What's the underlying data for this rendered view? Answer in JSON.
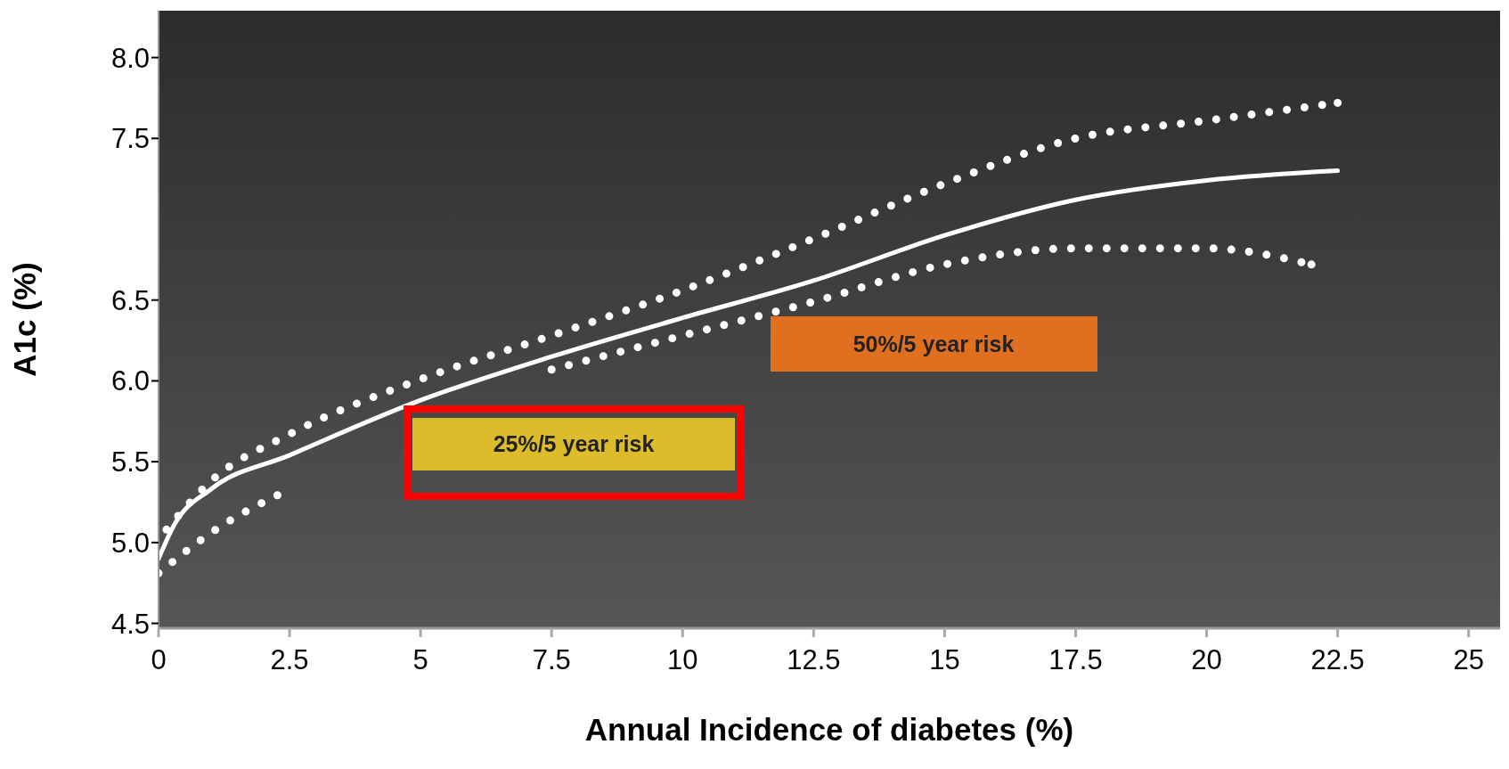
{
  "chart_data": {
    "type": "line",
    "xlabel": "Annual Incidence of diabetes (%)",
    "ylabel": "A1c (%)",
    "xlim": [
      0,
      25.6
    ],
    "xticks": [
      0,
      2.5,
      5,
      7.5,
      10,
      12.5,
      15,
      17.5,
      20,
      22.5,
      25
    ],
    "ylim": [
      4.47,
      8.29
    ],
    "yticks": [
      4.5,
      {
        "value": 5,
        "label": "5.0"
      },
      5.5,
      {
        "value": 6,
        "label": "6.0"
      },
      6.5,
      7.5,
      {
        "value": 8,
        "label": "8.0"
      }
    ],
    "marker": "none",
    "grid": false,
    "legend": false,
    "series": [
      {
        "color": "#ffffff",
        "line_style": "dotted",
        "x": [
          0.15,
          1,
          2.5,
          5,
          7.5,
          10,
          12.5,
          15,
          17.5,
          20,
          22.5
        ],
        "values": [
          5.08,
          5.38,
          5.67,
          6.01,
          6.28,
          6.56,
          6.88,
          7.22,
          7.5,
          7.61,
          7.72
        ]
      },
      {
        "color": "#ffffff",
        "line_style": "solid",
        "x": [
          0,
          0.3,
          1,
          2.5,
          5,
          7.5,
          10,
          12.5,
          15,
          17.5,
          20,
          22.5
        ],
        "values": [
          4.9,
          5.11,
          5.33,
          5.54,
          5.88,
          6.15,
          6.39,
          6.62,
          6.9,
          7.12,
          7.24,
          7.3
        ]
      },
      {
        "color": "#ffffff",
        "line_style": "dotted",
        "x": [
          0,
          1,
          2.5,
          5,
          7.5,
          10,
          12.5,
          15,
          17.5,
          20,
          22
        ],
        "values": [
          4.81,
          5.06,
          5.33,
          null,
          6.07,
          6.28,
          6.49,
          6.72,
          6.82,
          6.82,
          6.72
        ]
      }
    ],
    "annotations": [
      "50%/5 year risk",
      "25%/5 year risk"
    ]
  }
}
